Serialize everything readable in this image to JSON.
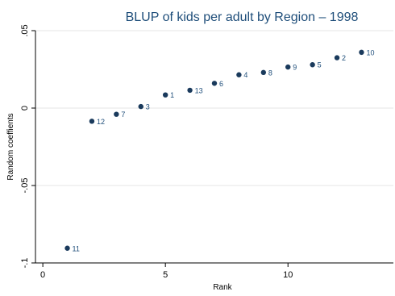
{
  "chart_data": {
    "type": "scatter",
    "title": "BLUP of kids per adult by Region  – 1998",
    "xlabel": "Rank",
    "ylabel": "Random coeffients",
    "xlim": [
      -0.3,
      14.3
    ],
    "ylim": [
      -0.1,
      0.05
    ],
    "xticks": [
      0,
      5,
      10
    ],
    "xtick_labels": [
      "0",
      "5",
      "10"
    ],
    "yticks": [
      -0.1,
      -0.05,
      0,
      0.05
    ],
    "ytick_labels": [
      "-.1",
      "-.05",
      "0",
      ".05"
    ],
    "grid": "horizontal",
    "marker_color": "#1a3a5c",
    "label_color": "#1f4e7a",
    "points": [
      {
        "x": 1,
        "y": -0.0905,
        "label": "11"
      },
      {
        "x": 2,
        "y": -0.0085,
        "label": "12"
      },
      {
        "x": 3,
        "y": -0.004,
        "label": "7"
      },
      {
        "x": 4,
        "y": 0.001,
        "label": "3"
      },
      {
        "x": 5,
        "y": 0.0085,
        "label": "1"
      },
      {
        "x": 6,
        "y": 0.0115,
        "label": "13"
      },
      {
        "x": 7,
        "y": 0.016,
        "label": "6"
      },
      {
        "x": 8,
        "y": 0.0215,
        "label": "4"
      },
      {
        "x": 9,
        "y": 0.023,
        "label": "8"
      },
      {
        "x": 10,
        "y": 0.0265,
        "label": "9"
      },
      {
        "x": 11,
        "y": 0.028,
        "label": "5"
      },
      {
        "x": 12,
        "y": 0.0325,
        "label": "2"
      },
      {
        "x": 13,
        "y": 0.036,
        "label": "10"
      }
    ]
  }
}
